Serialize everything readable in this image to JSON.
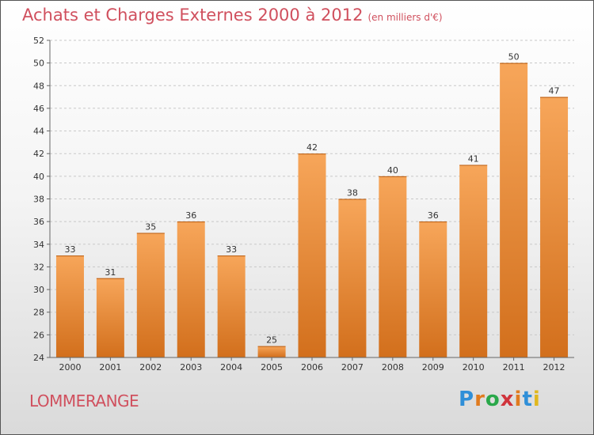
{
  "title": "Achats et Charges Externes 2000 à 2012",
  "subtitle": "(en milliers d'€)",
  "city": "LOMMERANGE",
  "logo": {
    "text": "Proxiti",
    "colors": [
      "#2f8fd8",
      "#e07b1f",
      "#2aa84a",
      "#d0343c",
      "#e07b1f",
      "#2f8fd8",
      "#e0b81f"
    ]
  },
  "colors": {
    "bar_top": "#f7a65a",
    "bar_bottom": "#d26f1c",
    "title": "#d0505e"
  },
  "chart_data": {
    "type": "bar",
    "title": "Achats et Charges Externes 2000 à 2012",
    "xlabel": "",
    "ylabel": "",
    "categories": [
      "2000",
      "2001",
      "2002",
      "2003",
      "2004",
      "2005",
      "2006",
      "2007",
      "2008",
      "2009",
      "2010",
      "2011",
      "2012"
    ],
    "values": [
      33,
      31,
      35,
      36,
      33,
      25,
      42,
      38,
      40,
      36,
      41,
      50,
      47
    ],
    "ylim": [
      24,
      52
    ],
    "yticks": [
      24,
      26,
      28,
      30,
      32,
      34,
      36,
      38,
      40,
      42,
      44,
      46,
      48,
      50,
      52
    ],
    "grid": true,
    "data_labels": true
  }
}
